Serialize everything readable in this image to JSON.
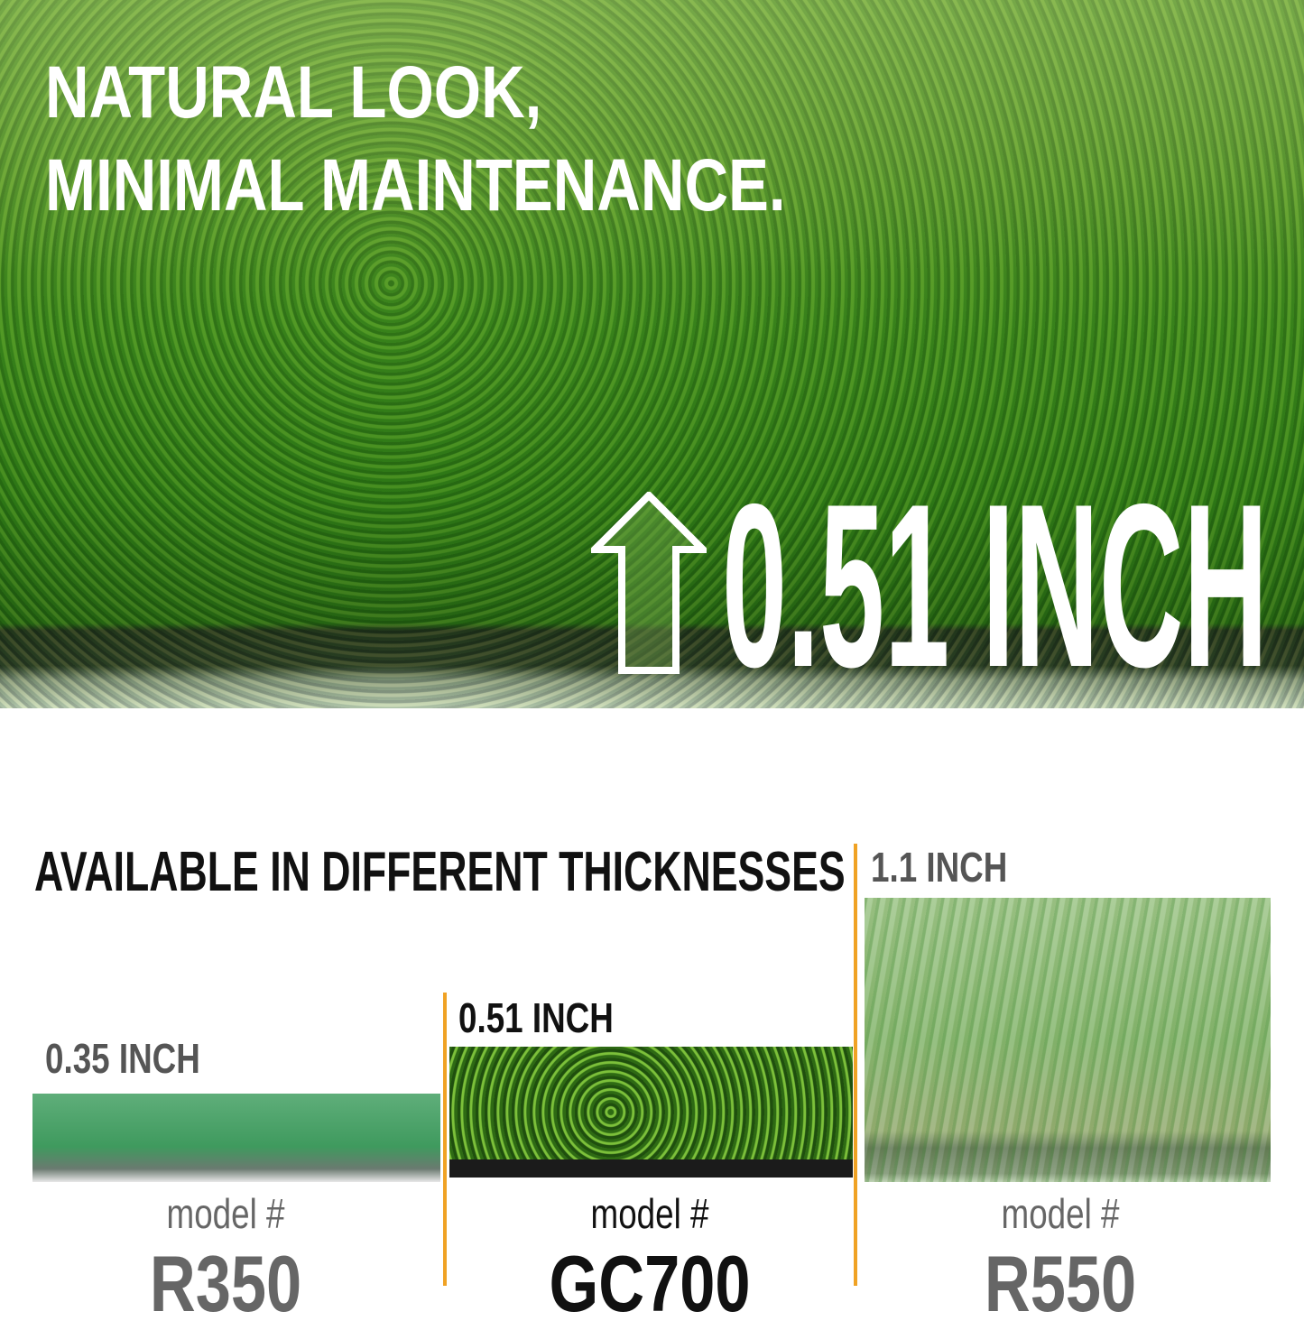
{
  "hero": {
    "headline_line1": "NATURAL LOOK,",
    "headline_line2": "MINIMAL MAINTENANCE.",
    "thickness": "0.51 INCH",
    "icon": "arrow-up-icon"
  },
  "comparison": {
    "title": "AVAILABLE IN DIFFERENT THICKNESSES",
    "items": [
      {
        "thickness": "0.35 INCH",
        "model_label": "model #",
        "model": "R350"
      },
      {
        "thickness": "0.51 INCH",
        "model_label": "model #",
        "model": "GC700"
      },
      {
        "thickness": "1.1 INCH",
        "model_label": "model #",
        "model": "R550"
      }
    ]
  },
  "colors": {
    "accent": "#f0a224",
    "grass": "#3f8a1e"
  }
}
